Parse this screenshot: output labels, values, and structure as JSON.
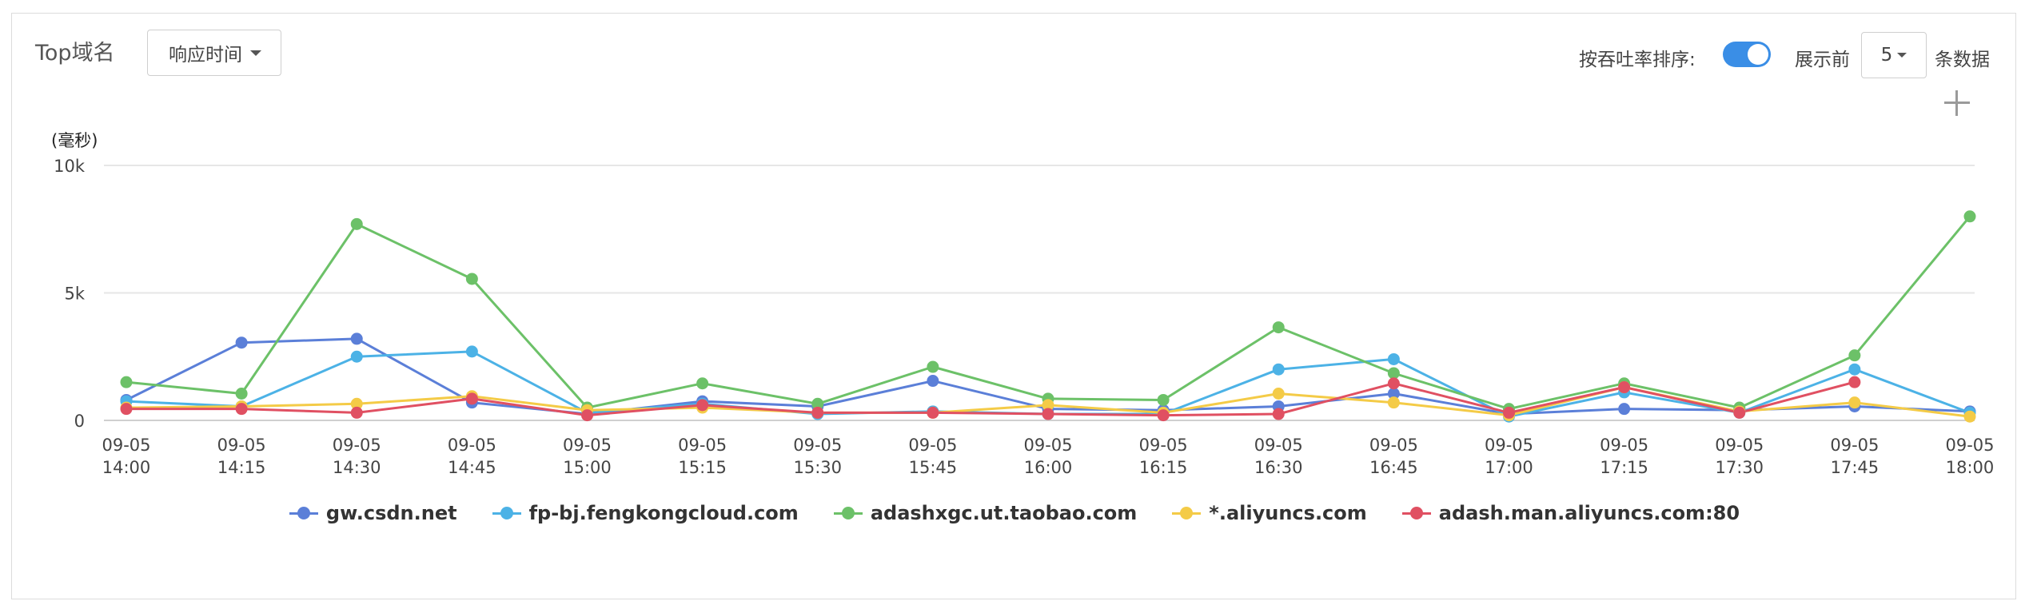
{
  "header": {
    "title": "Top域名",
    "metric_select": "响应时间",
    "sort_label": "按吞吐率排序:",
    "sort_enabled": true,
    "show_label": "展示前",
    "show_count": "5",
    "rows_label": "条数据"
  },
  "chart_data": {
    "type": "line",
    "unit_label": "(毫秒)",
    "ylim": [
      0,
      10000
    ],
    "yticks": [
      "0",
      "5k",
      "10k"
    ],
    "ytick_values": [
      0,
      5000,
      10000
    ],
    "categories": [
      [
        "09-05",
        "14:00"
      ],
      [
        "09-05",
        "14:15"
      ],
      [
        "09-05",
        "14:30"
      ],
      [
        "09-05",
        "14:45"
      ],
      [
        "09-05",
        "15:00"
      ],
      [
        "09-05",
        "15:15"
      ],
      [
        "09-05",
        "15:30"
      ],
      [
        "09-05",
        "15:45"
      ],
      [
        "09-05",
        "16:00"
      ],
      [
        "09-05",
        "16:15"
      ],
      [
        "09-05",
        "16:30"
      ],
      [
        "09-05",
        "16:45"
      ],
      [
        "09-05",
        "17:00"
      ],
      [
        "09-05",
        "17:15"
      ],
      [
        "09-05",
        "17:30"
      ],
      [
        "09-05",
        "17:45"
      ],
      [
        "09-05",
        "18:00"
      ]
    ],
    "grid": true,
    "legend_position": "bottom",
    "series": [
      {
        "name": "gw.csdn.net",
        "color": "#5b7fd8",
        "values": [
          800,
          3050,
          3200,
          700,
          250,
          750,
          550,
          1550,
          450,
          400,
          550,
          1050,
          250,
          450,
          400,
          550,
          350
        ]
      },
      {
        "name": "fp-bj.fengkongcloud.com",
        "color": "#4cb2e6",
        "values": [
          750,
          550,
          2500,
          2700,
          300,
          650,
          250,
          350,
          250,
          250,
          2000,
          2400,
          150,
          1100,
          300,
          2000,
          300
        ]
      },
      {
        "name": "adashxgc.ut.taobao.com",
        "color": "#6cc168",
        "values": [
          1500,
          1050,
          7700,
          5550,
          500,
          1450,
          650,
          2100,
          850,
          800,
          3650,
          1850,
          450,
          1450,
          500,
          2550,
          8000
        ]
      },
      {
        "name": "*.aliyuncs.com",
        "color": "#f4cb47",
        "values": [
          500,
          550,
          650,
          950,
          400,
          500,
          300,
          300,
          600,
          300,
          1050,
          700,
          200,
          1300,
          350,
          700,
          150
        ]
      },
      {
        "name": "adash.man.aliyuncs.com:80",
        "color": "#e05062",
        "values": [
          450,
          450,
          300,
          850,
          200,
          600,
          300,
          300,
          250,
          200,
          250,
          1450,
          300,
          1300,
          300,
          1500,
          null
        ]
      }
    ]
  }
}
